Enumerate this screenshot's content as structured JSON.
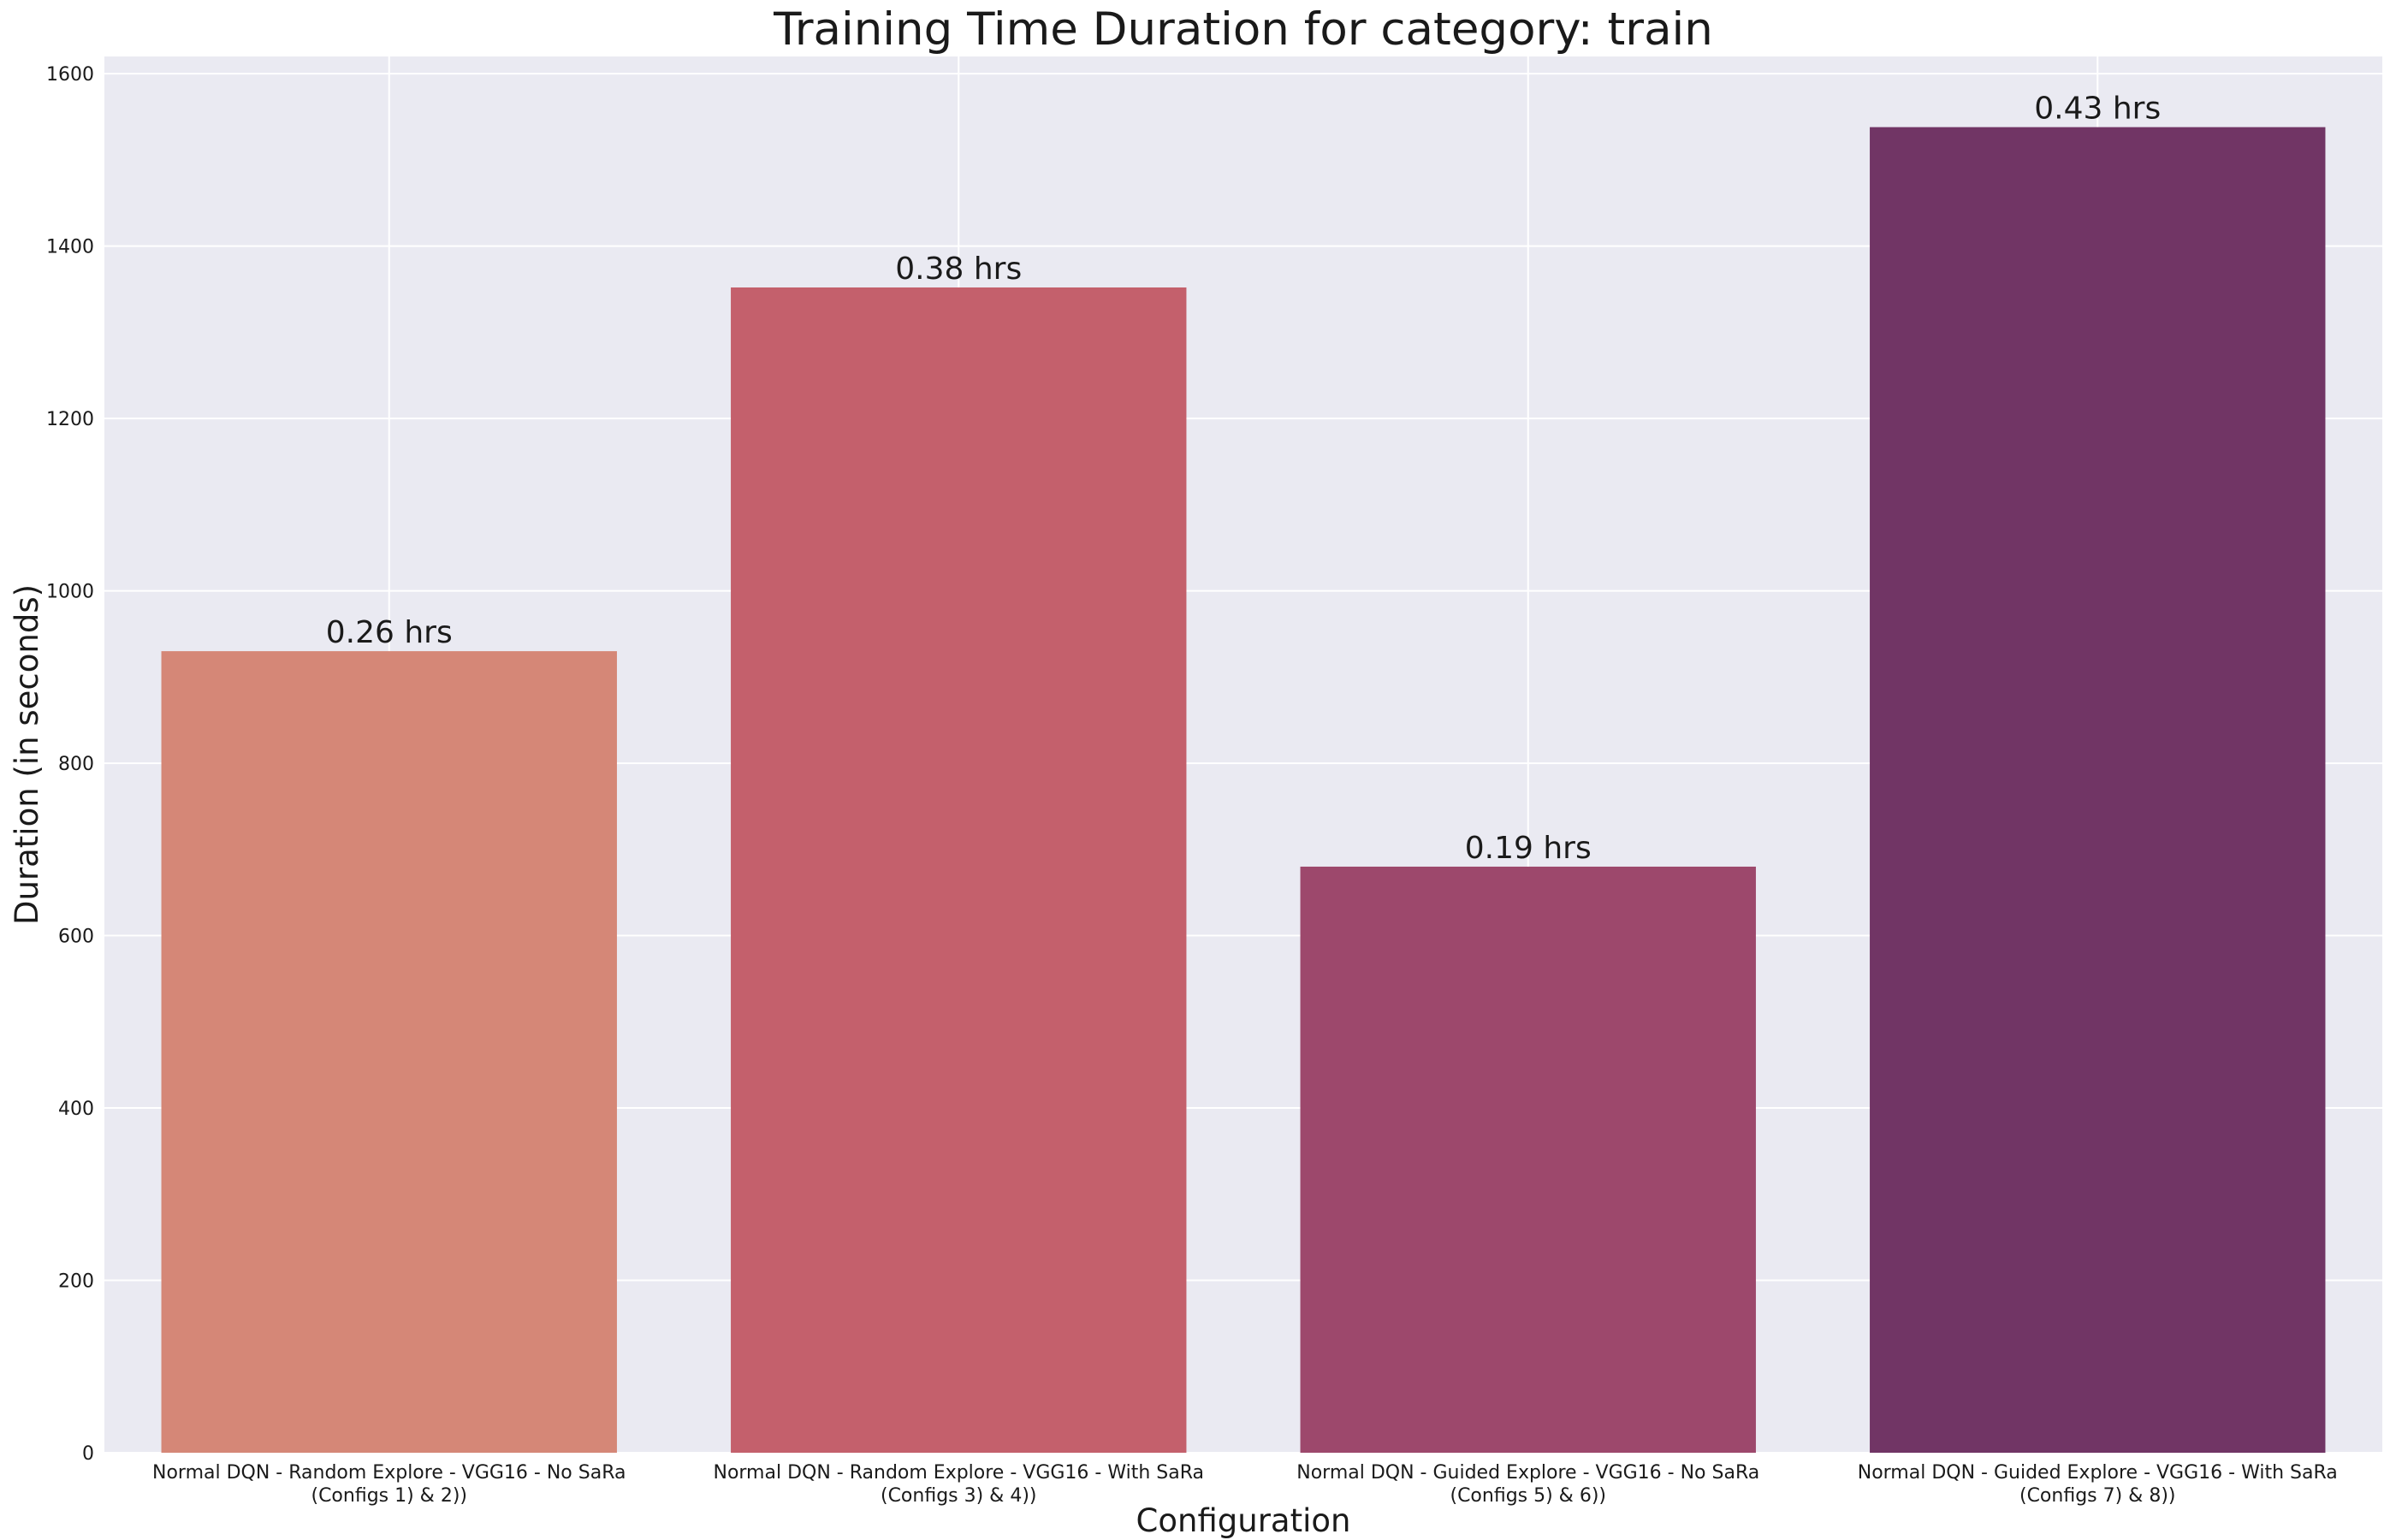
{
  "chart_data": {
    "type": "bar",
    "title": "Training Time Duration for category: train",
    "xlabel": "Configuration",
    "ylabel": "Duration (in seconds)",
    "ylim": [
      0,
      1620
    ],
    "yticks": [
      0,
      200,
      400,
      600,
      800,
      1000,
      1200,
      1400,
      1600
    ],
    "grid": true,
    "categories": [
      [
        "Normal DQN - Random Explore - VGG16 - No SaRa",
        "(Configs 1) & 2))"
      ],
      [
        "Normal DQN - Random Explore - VGG16 - With SaRa",
        "(Configs 3) & 4))"
      ],
      [
        "Normal DQN - Guided Explore - VGG16 - No SaRa",
        "(Configs 5) & 6))"
      ],
      [
        "Normal DQN - Guided Explore - VGG16 - With SaRa",
        "(Configs 7) & 8))"
      ]
    ],
    "values": [
      930,
      1352,
      680,
      1538
    ],
    "bar_labels": [
      "0.26 hrs",
      "0.38 hrs",
      "0.19 hrs",
      "0.43 hrs"
    ],
    "colors": [
      "#d58777",
      "#c4606c",
      "#9d486c",
      "#713565"
    ],
    "background": "#eaeaf2",
    "grid_color": "#ffffff"
  }
}
